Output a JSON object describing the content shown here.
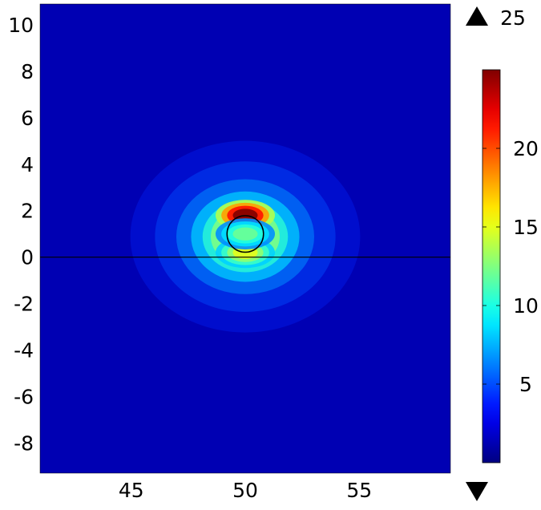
{
  "chart_data": {
    "type": "heatmap",
    "title": "",
    "xlabel": "",
    "ylabel": "",
    "xlim": [
      41,
      59
    ],
    "ylim": [
      -9.3,
      10.9
    ],
    "x_ticks": [
      {
        "value": 45,
        "label": "45"
      },
      {
        "value": 50,
        "label": "50"
      },
      {
        "value": 55,
        "label": "55"
      }
    ],
    "y_ticks": [
      {
        "value": 10,
        "label": "10"
      },
      {
        "value": 8,
        "label": "8"
      },
      {
        "value": 6,
        "label": "6"
      },
      {
        "value": 4,
        "label": "4"
      },
      {
        "value": 2,
        "label": "2"
      },
      {
        "value": 0,
        "label": "0"
      },
      {
        "value": -2,
        "label": "-2"
      },
      {
        "value": -4,
        "label": "-4"
      },
      {
        "value": -6,
        "label": "-6"
      },
      {
        "value": -8,
        "label": "-8"
      }
    ],
    "colormap": "jet",
    "colorbar": {
      "min": 0,
      "max": 25,
      "max_label": "25",
      "ticks": [
        {
          "value": 5,
          "label": "5"
        },
        {
          "value": 10,
          "label": "10"
        },
        {
          "value": 15,
          "label": "15"
        },
        {
          "value": 20,
          "label": "20"
        }
      ],
      "max_marker": "up-triangle-icon",
      "min_marker": "down-triangle-icon"
    },
    "overlay": {
      "circle": {
        "cx": 50,
        "cy": 1.0,
        "r": 0.8,
        "color": "#000000"
      },
      "interface_line_y": 0
    },
    "field_features": [
      {
        "x": 50,
        "y": 1.8,
        "value": 25
      },
      {
        "x": 50,
        "y": 0.2,
        "value": 15
      },
      {
        "x": 50,
        "y": 1.0,
        "value": 12
      }
    ],
    "grid": false
  }
}
